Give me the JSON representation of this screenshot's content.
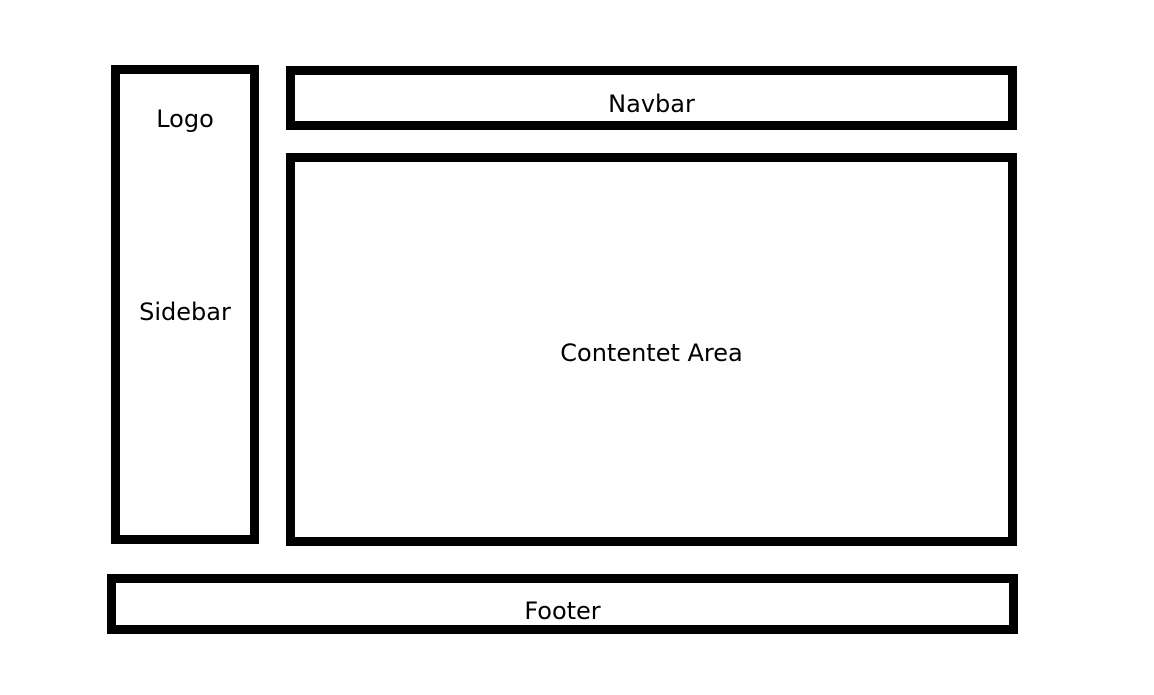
{
  "layout_diagram": {
    "sidebar": {
      "logo_label": "Logo",
      "label": "Sidebar"
    },
    "navbar": {
      "label": "Navbar"
    },
    "content": {
      "label": "Contentet Area"
    },
    "footer": {
      "label": "Footer"
    }
  },
  "colors": {
    "stroke": "#000000",
    "background": "#ffffff"
  }
}
